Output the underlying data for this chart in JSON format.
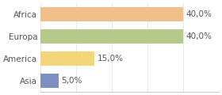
{
  "categories": [
    "Africa",
    "Europa",
    "America",
    "Asia"
  ],
  "values": [
    40.0,
    40.0,
    15.0,
    5.0
  ],
  "bar_colors": [
    "#f0c08a",
    "#b5c98a",
    "#f5d57a",
    "#7b8fc0"
  ],
  "labels": [
    "40,0%",
    "40,0%",
    "15,0%",
    "5,0%"
  ],
  "xlim": [
    0,
    50
  ],
  "background_color": "#ffffff",
  "bar_height": 0.65,
  "label_fontsize": 7.5,
  "category_fontsize": 7.5
}
